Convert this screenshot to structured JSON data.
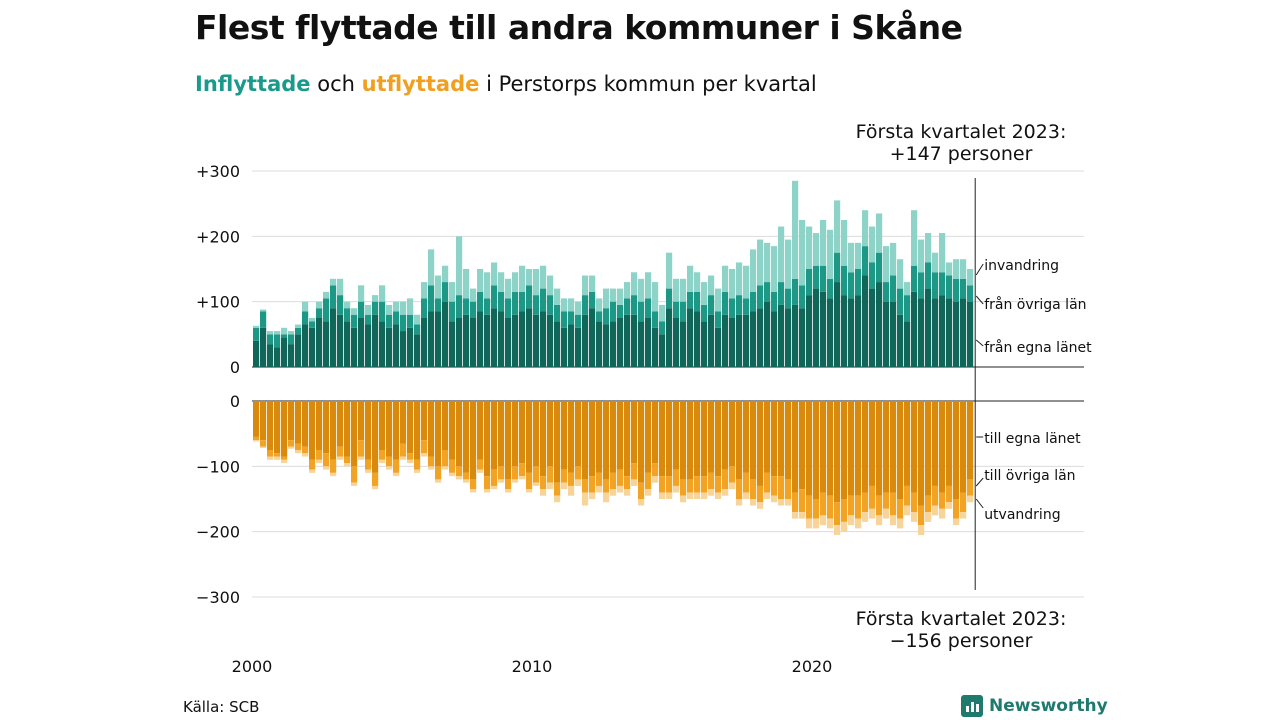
{
  "title": "Flest flyttade till andra kommuner i Skåne",
  "subtitle": {
    "part1": "Inflyttade",
    "part2": " och ",
    "part3": "utflyttade",
    "part4": " i Perstorps kommun per kvartal"
  },
  "source": "Källa: SCB",
  "brand": "Newsworthy",
  "colors": {
    "in_same_county": "#0f6659",
    "in_other_counties": "#1d9886",
    "in_immigration": "#8ed3c8",
    "out_same_county": "#d98a0c",
    "out_other_counties": "#f3a324",
    "out_emigration": "#f7d49a",
    "brand": "#1f7a6e"
  },
  "chart_data": {
    "type": "bar",
    "stacked": true,
    "x_start": "2000 Q1",
    "x_ticks": [
      "2000",
      "2010",
      "2020"
    ],
    "top_panel": {
      "yticks": [
        "+300",
        "+200",
        "+100",
        "0"
      ],
      "ylim": [
        0,
        300
      ],
      "series": [
        {
          "name": "från egna länet",
          "values": [
            40,
            60,
            35,
            30,
            45,
            35,
            50,
            65,
            60,
            75,
            70,
            90,
            80,
            70,
            60,
            75,
            65,
            80,
            70,
            60,
            65,
            55,
            60,
            50,
            75,
            85,
            85,
            100,
            70,
            75,
            80,
            75,
            85,
            80,
            90,
            85,
            75,
            80,
            85,
            90,
            80,
            85,
            80,
            70,
            60,
            65,
            60,
            80,
            90,
            70,
            65,
            70,
            75,
            80,
            80,
            70,
            75,
            60,
            50,
            90,
            75,
            70,
            90,
            85,
            70,
            80,
            60,
            80,
            75,
            80,
            80,
            85,
            90,
            100,
            85,
            95,
            90,
            95,
            90,
            110,
            120,
            115,
            105,
            130,
            110,
            105,
            110,
            140,
            120,
            130,
            100,
            100,
            80,
            70,
            115,
            105,
            120,
            105,
            110,
            105,
            100,
            105,
            100
          ]
        },
        {
          "name": "från övriga län",
          "values": [
            20,
            25,
            15,
            20,
            5,
            15,
            10,
            20,
            10,
            15,
            35,
            35,
            30,
            20,
            20,
            25,
            15,
            20,
            30,
            20,
            20,
            25,
            20,
            15,
            30,
            40,
            20,
            30,
            30,
            35,
            25,
            25,
            30,
            25,
            35,
            30,
            30,
            35,
            30,
            35,
            30,
            35,
            30,
            25,
            25,
            20,
            20,
            30,
            25,
            15,
            25,
            30,
            20,
            25,
            30,
            30,
            30,
            25,
            20,
            30,
            25,
            30,
            25,
            30,
            25,
            30,
            25,
            35,
            30,
            30,
            25,
            30,
            35,
            30,
            30,
            35,
            30,
            40,
            35,
            40,
            35,
            40,
            30,
            45,
            45,
            40,
            40,
            45,
            40,
            45,
            30,
            40,
            40,
            40,
            40,
            40,
            40,
            40,
            35,
            35,
            35,
            30,
            25
          ]
        },
        {
          "name": "invandring",
          "values": [
            3,
            3,
            5,
            5,
            10,
            5,
            5,
            15,
            5,
            10,
            10,
            10,
            25,
            10,
            10,
            25,
            15,
            10,
            25,
            15,
            15,
            20,
            25,
            15,
            25,
            55,
            35,
            25,
            30,
            90,
            45,
            20,
            35,
            40,
            35,
            30,
            30,
            30,
            40,
            25,
            40,
            35,
            30,
            25,
            20,
            20,
            20,
            30,
            25,
            20,
            30,
            20,
            25,
            25,
            35,
            35,
            40,
            45,
            25,
            55,
            35,
            35,
            40,
            30,
            35,
            30,
            35,
            40,
            45,
            50,
            50,
            65,
            70,
            60,
            70,
            85,
            75,
            150,
            100,
            65,
            50,
            70,
            75,
            80,
            70,
            45,
            40,
            55,
            55,
            60,
            55,
            50,
            45,
            20,
            85,
            50,
            45,
            30,
            60,
            20,
            30,
            30,
            25
          ]
        }
      ]
    },
    "bottom_panel": {
      "yticks": [
        "0",
        "−100",
        "−200",
        "−300"
      ],
      "ylim": [
        -300,
        0
      ],
      "series": [
        {
          "name": "till egna länet",
          "values": [
            -55,
            -60,
            -75,
            -80,
            -85,
            -60,
            -65,
            -70,
            -90,
            -75,
            -80,
            -90,
            -70,
            -85,
            -100,
            -60,
            -90,
            -110,
            -75,
            -85,
            -90,
            -65,
            -80,
            -90,
            -60,
            -85,
            -100,
            -75,
            -90,
            -100,
            -110,
            -120,
            -90,
            -115,
            -105,
            -100,
            -120,
            -100,
            -95,
            -110,
            -100,
            -115,
            -100,
            -125,
            -105,
            -110,
            -100,
            -120,
            -115,
            -110,
            -120,
            -110,
            -105,
            -115,
            -95,
            -125,
            -110,
            -95,
            -115,
            -115,
            -105,
            -120,
            -120,
            -115,
            -115,
            -110,
            -115,
            -105,
            -100,
            -120,
            -110,
            -120,
            -130,
            -110,
            -115,
            -115,
            -120,
            -140,
            -135,
            -145,
            -150,
            -140,
            -145,
            -155,
            -150,
            -145,
            -145,
            -140,
            -130,
            -145,
            -140,
            -140,
            -150,
            -130,
            -140,
            -160,
            -145,
            -130,
            -140,
            -130,
            -150,
            -140,
            -120
          ]
        },
        {
          "name": "till övriga län",
          "values": [
            -5,
            -10,
            -10,
            -5,
            -5,
            -10,
            -10,
            -10,
            -15,
            -15,
            -20,
            -20,
            -15,
            -10,
            -25,
            -25,
            -15,
            -20,
            -15,
            -15,
            -20,
            -20,
            -10,
            -15,
            -20,
            -15,
            -20,
            -25,
            -20,
            -15,
            -10,
            -15,
            -15,
            -20,
            -25,
            -20,
            -15,
            -20,
            -20,
            -25,
            -25,
            -20,
            -25,
            -20,
            -20,
            -20,
            -20,
            -20,
            -25,
            -20,
            -20,
            -25,
            -25,
            -20,
            -25,
            -25,
            -25,
            -20,
            -25,
            -25,
            -25,
            -25,
            -20,
            -25,
            -25,
            -25,
            -25,
            -30,
            -25,
            -30,
            -30,
            -30,
            -25,
            -30,
            -30,
            -35,
            -30,
            -30,
            -35,
            -35,
            -30,
            -35,
            -35,
            -35,
            -35,
            -30,
            -35,
            -30,
            -35,
            -30,
            -25,
            -35,
            -30,
            -30,
            -30,
            -30,
            -25,
            -30,
            -25,
            -25,
            -30,
            -30,
            -25
          ]
        },
        {
          "name": "utvandring",
          "values": [
            -2,
            -2,
            -5,
            -5,
            -5,
            -3,
            -5,
            -5,
            -5,
            -5,
            -5,
            -5,
            -5,
            -5,
            -5,
            -5,
            -5,
            -5,
            -5,
            -5,
            -5,
            -5,
            -5,
            -5,
            -5,
            -5,
            -5,
            -5,
            -5,
            -5,
            -5,
            -5,
            -5,
            -5,
            -5,
            -5,
            -5,
            -5,
            -5,
            -5,
            -5,
            -10,
            -10,
            -10,
            -10,
            -15,
            -10,
            -20,
            -10,
            -10,
            -15,
            -10,
            -10,
            -10,
            -10,
            -10,
            -10,
            -10,
            -10,
            -10,
            -10,
            -10,
            -10,
            -10,
            -10,
            -10,
            -10,
            -10,
            -10,
            -10,
            -10,
            -10,
            -10,
            -10,
            -10,
            -10,
            -10,
            -10,
            -10,
            -15,
            -15,
            -15,
            -15,
            -15,
            -15,
            -15,
            -15,
            -15,
            -15,
            -15,
            -15,
            -15,
            -15,
            -15,
            -15,
            -15,
            -15,
            -15,
            -15,
            -10,
            -10,
            -10,
            -10
          ]
        }
      ]
    },
    "annotations": [
      {
        "name": "top",
        "line1": "Första kvartalet 2023:",
        "line2": "+147 personer"
      },
      {
        "name": "bottom",
        "line1": "Första kvartalet 2023:",
        "line2": "−156 personer"
      }
    ],
    "legend_labels_top": [
      "invandring",
      "från övriga län",
      "från egna länet"
    ],
    "legend_labels_bottom": [
      "till egna länet",
      "till övriga län",
      "utvandring"
    ]
  }
}
